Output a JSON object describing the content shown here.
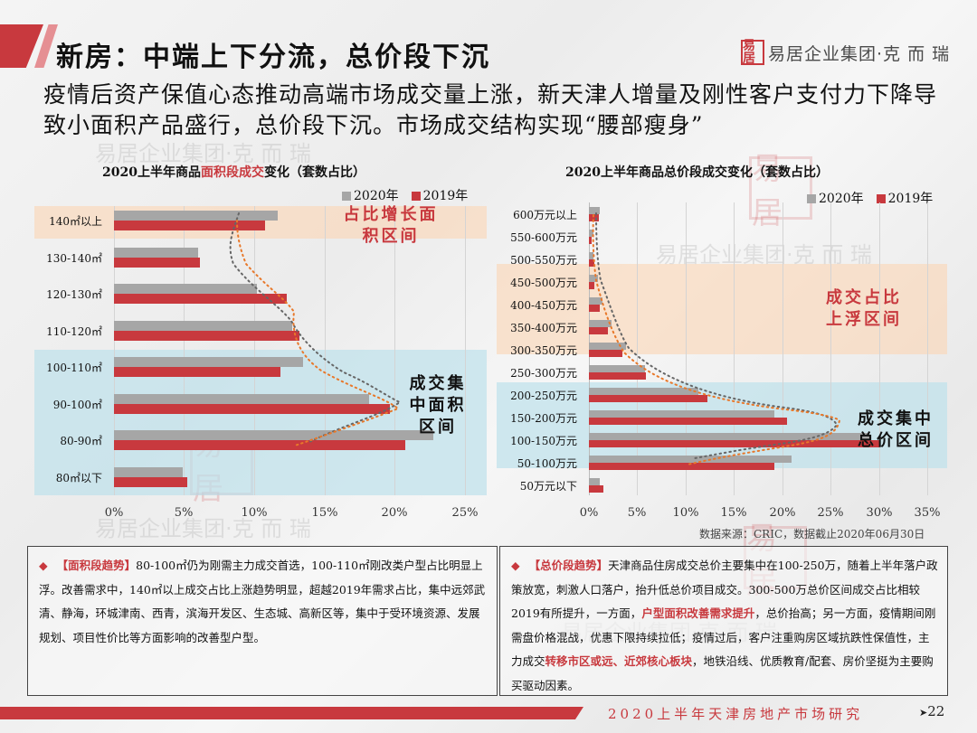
{
  "header": {
    "title": "新房：中端上下分流，总价段下沉",
    "logo_seal": "易居",
    "logo_text": "易居企业集团·克 而 瑞",
    "subtitle": "疫情后资产保值心态推动高端市场成交量上涨，新天津人增量及刚性客户支付力下降导致小面积产品盛行，总价段下沉。市场成交结构实现“腰部瘦身”"
  },
  "colors": {
    "accent_red": "#c8393e",
    "bar_2020": "#a6a6a6",
    "bar_2019": "#c8393e",
    "band_peach": "#f8dcc6",
    "band_blue": "#cfe6ec"
  },
  "chart_data": [
    {
      "type": "bar",
      "orientation": "horizontal",
      "title": "2020上半年商品面积段成交变化（套数占比）",
      "title_parts": {
        "pre": "2020上半年商品",
        "highlight": "面积段成交",
        "post": "变化（套数占比）"
      },
      "categories": [
        "140㎡以上",
        "130-140㎡",
        "120-130㎡",
        "110-120㎡",
        "100-110㎡",
        "90-100㎡",
        "80-90㎡",
        "80㎡以下"
      ],
      "series": [
        {
          "name": "2020年",
          "values": [
            11.7,
            6.0,
            10.2,
            12.7,
            13.5,
            18.2,
            22.8,
            4.9
          ]
        },
        {
          "name": "2019年",
          "values": [
            10.8,
            6.1,
            12.3,
            13.2,
            11.9,
            19.7,
            20.8,
            5.2
          ]
        }
      ],
      "xlabel": "",
      "ylabel": "",
      "xlim": [
        0,
        25
      ],
      "x_ticks": [
        "0%",
        "5%",
        "10%",
        "15%",
        "20%",
        "25%"
      ],
      "grid": true,
      "legend_position": "top-right",
      "annotations": [
        {
          "text": "占比增长面积区间",
          "lines": [
            "占比增长面",
            "积区间"
          ],
          "color": "#c8393e",
          "band": "peach",
          "rows": [
            "140㎡以上"
          ]
        },
        {
          "text": "成交集中面积区间",
          "lines": [
            "成交集",
            "中面积",
            "区间"
          ],
          "color": "#111111",
          "band": "blue",
          "rows": [
            "100-110㎡",
            "90-100㎡",
            "80-90㎡",
            "80㎡以下"
          ]
        }
      ]
    },
    {
      "type": "bar",
      "orientation": "horizontal",
      "title": "2020上半年商品总价段成交变化（套数占比）",
      "categories": [
        "600万元以上",
        "550-600万元",
        "500-550万元",
        "450-500万元",
        "400-450万元",
        "350-400万元",
        "300-350万元",
        "250-300万元",
        "200-250万元",
        "150-200万元",
        "100-150万元",
        "50-100万元",
        "50万元以下"
      ],
      "series": [
        {
          "name": "2020年",
          "values": [
            1.1,
            0.5,
            0.5,
            0.9,
            1.4,
            2.3,
            3.8,
            5.8,
            11.3,
            19.2,
            29.0,
            20.9,
            1.1
          ]
        },
        {
          "name": "2019年",
          "values": [
            1.0,
            0.3,
            0.6,
            0.6,
            1.1,
            2.0,
            3.5,
            5.9,
            12.2,
            20.5,
            30.0,
            19.2,
            1.5
          ]
        }
      ],
      "xlabel": "",
      "ylabel": "",
      "xlim": [
        0,
        35
      ],
      "x_ticks": [
        "0%",
        "5%",
        "10%",
        "15%",
        "20%",
        "25%",
        "30%",
        "35%"
      ],
      "grid": true,
      "legend_position": "top-right",
      "annotations": [
        {
          "text": "成交占比上浮区间",
          "lines": [
            "成交占比",
            "上浮区间"
          ],
          "color": "#c8393e",
          "band": "peach",
          "rows": [
            "450-500万元",
            "400-450万元",
            "350-400万元",
            "300-350万元"
          ]
        },
        {
          "text": "成交集中总价区间",
          "lines": [
            "成交集中",
            "总价区间"
          ],
          "color": "#111111",
          "band": "blue",
          "rows": [
            "200-250万元",
            "150-200万元",
            "100-150万元",
            "50-100万元"
          ]
        }
      ],
      "source": "数据来源：CRIC，数据截止2020年06月30日"
    }
  ],
  "legend": {
    "label_2020": "2020年",
    "label_2019": "2019年"
  },
  "left_box": {
    "bullet": "◆",
    "tag": "【面积段趋势】",
    "text": "80-100㎡仍为刚需主力成交首选，100-110㎡刚改类户型占比明显上浮。改善需求中，140㎡以上成交占比上涨趋势明显，超越2019年需求占比，集中远郊武清、静海，环城津南、西青，滨海开发区、生态城、高新区等，集中于受环境资源、发展规划、项目性价比等方面影响的改善型户型。"
  },
  "right_box": {
    "bullet": "◆",
    "tag": "【总价段趋势】",
    "text1": "天津商品住房成交总价主要集中在100-250万，随着上半年落户政策放宽，刺激人口落户，抬升低总价项目成交。300-500万总价区间成交占比相较2019有所提升，一方面，",
    "hl1": "户型面积改善需求提升",
    "text2": "，总价抬高；另一方面，疫情期间刚需盘价格混战，优惠下限持续拉低；疫情过后，客户注重购房区域抗跌性保值性，主力成交",
    "hl2": "转移市区或远、近郊核心板块",
    "text3": "，地铁沿线、优质教育/配套、房价坚挺为主要购买驱动因素。"
  },
  "footer": {
    "report_title": "2020上半年天津房地产市场研究",
    "page_arrow": "➤",
    "page_number": "22"
  },
  "watermark": {
    "text": "易居企业集团·克 而 瑞",
    "seal": "易居"
  }
}
